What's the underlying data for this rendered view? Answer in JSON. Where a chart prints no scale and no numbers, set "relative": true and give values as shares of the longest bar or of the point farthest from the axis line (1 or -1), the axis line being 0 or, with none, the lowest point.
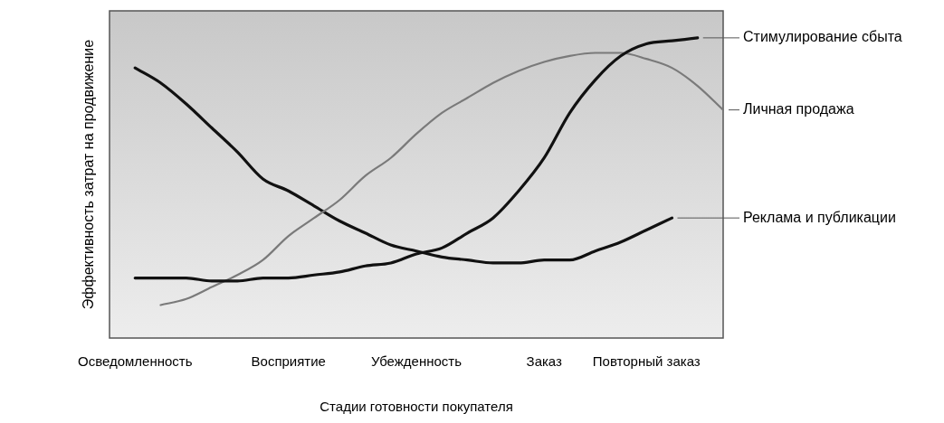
{
  "chart_data": {
    "type": "line",
    "relative": true,
    "xlabel": "Стадии готовности покупателя",
    "ylabel": "Эффективность затрат на продвижение",
    "legend": false,
    "grid": false,
    "marker": "none",
    "line_style": "solid",
    "categories": [
      null,
      "Осведомленность",
      null,
      null,
      null,
      null,
      null,
      "Восприятие",
      null,
      null,
      null,
      null,
      "Убежденность",
      null,
      null,
      null,
      null,
      "Заказ",
      null,
      null,
      null,
      "Повторный заказ",
      null,
      null,
      null
    ],
    "series": [
      {
        "name": "Стимулирование сбыта",
        "color": "#111111",
        "values": [
          null,
          0.2,
          0.2,
          0.2,
          0.19,
          0.19,
          0.2,
          0.2,
          0.21,
          0.22,
          0.24,
          0.25,
          0.28,
          0.3,
          0.35,
          0.4,
          0.49,
          0.6,
          0.75,
          0.86,
          0.94,
          0.98,
          0.99,
          1,
          null
        ]
      },
      {
        "name": "Личная продажа",
        "color": "#7a7a7a",
        "values": [
          null,
          null,
          0.11,
          0.13,
          0.17,
          0.21,
          0.26,
          0.34,
          0.4,
          0.46,
          0.54,
          0.6,
          0.68,
          0.75,
          0.8,
          0.85,
          0.89,
          0.92,
          0.94,
          0.95,
          0.95,
          0.93,
          0.9,
          0.84,
          0.76
        ]
      },
      {
        "name": "Реклама и публикации",
        "color": "#111111",
        "values": [
          null,
          0.9,
          0.85,
          0.78,
          0.7,
          0.62,
          0.53,
          0.49,
          0.44,
          0.39,
          0.35,
          0.31,
          0.29,
          0.27,
          0.26,
          0.25,
          0.25,
          0.26,
          0.26,
          0.29,
          0.32,
          0.36,
          0.4,
          null,
          null
        ]
      }
    ]
  }
}
